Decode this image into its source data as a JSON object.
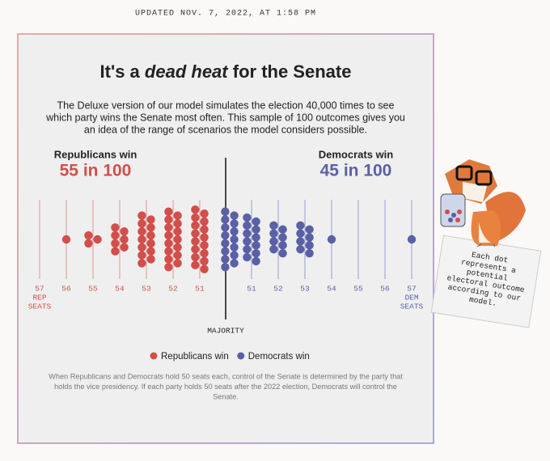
{
  "updated": "UPDATED NOV. 7, 2022, AT 1:58 PM",
  "chart_data": {
    "type": "dot",
    "title_parts": [
      "It's a",
      "dead heat",
      "for the Senate"
    ],
    "description": [
      "The Deluxe version of our model simulates the election 40,000 times to see",
      "which party wins the Senate most often. This sample of 100 outcomes gives you",
      "an idea of the range of scenarios the model considers possible."
    ],
    "series": [
      {
        "name": "Republicans win",
        "headline": "55 in 100",
        "color": "#d04f4b",
        "line_color": "#e6a3a1",
        "categories": [
          57,
          56,
          55,
          54,
          53,
          52,
          51
        ],
        "values": [
          0,
          1,
          3,
          7,
          13,
          15,
          16
        ],
        "axis_label": [
          "REP",
          "SEATS"
        ]
      },
      {
        "name": "Democrats win",
        "headline": "45 in 100",
        "color": "#5a60a6",
        "line_color": "#a6aad2",
        "categories": [
          null,
          51,
          52,
          53,
          54,
          55,
          56,
          57
        ],
        "values": [
          15,
          12,
          8,
          8,
          1,
          0,
          0,
          1
        ],
        "axis_label": [
          "DEM",
          "SEATS"
        ]
      }
    ],
    "majority_label": "MAJORITY",
    "footnote": [
      "When Republicans and Democrats hold 50 seats each, control of the Senate is determined by the party that",
      "holds the vice presidency. If each party holds 50 seats after the 2022 election, Democrats will control the",
      "Senate."
    ]
  },
  "side_note": [
    "Each dot",
    "represents a",
    "potential",
    "electoral outcome",
    "according to our",
    "model."
  ]
}
